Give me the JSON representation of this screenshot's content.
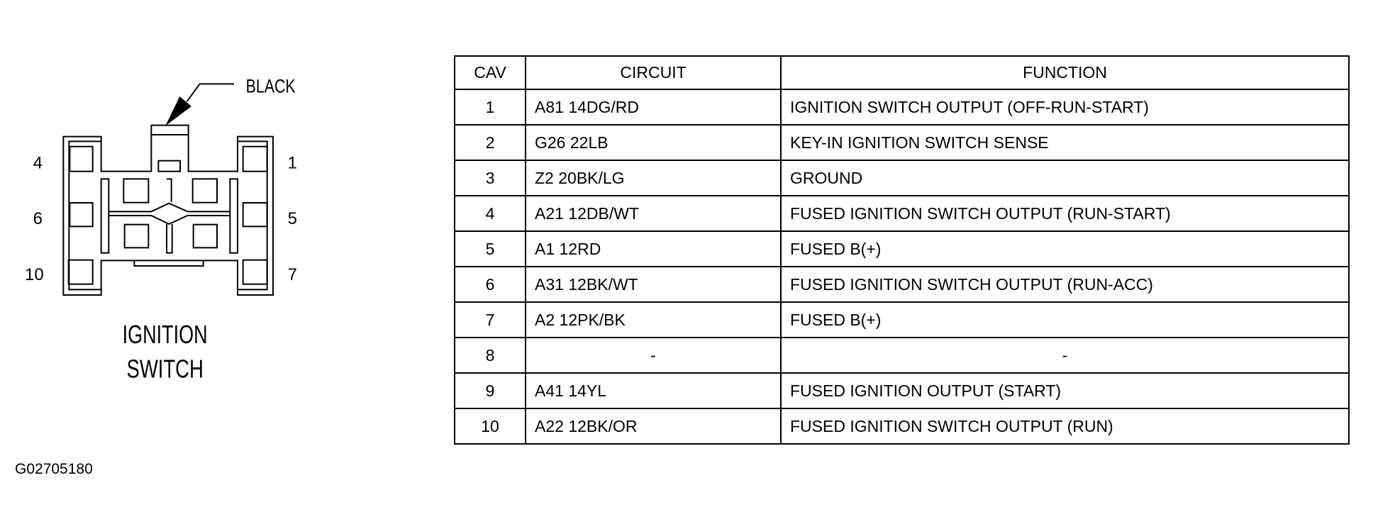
{
  "connector": {
    "color_label": "BLACK",
    "name_line1": "IGNITION",
    "name_line2": "SWITCH",
    "pin_labels_left": [
      "4",
      "6",
      "10"
    ],
    "pin_labels_right": [
      "1",
      "5",
      "7"
    ]
  },
  "table": {
    "headers": {
      "cav": "CAV",
      "circuit": "CIRCUIT",
      "function": "FUNCTION"
    },
    "rows": [
      {
        "cav": "1",
        "circuit": "A81 14DG/RD",
        "function": "IGNITION SWITCH OUTPUT (OFF-RUN-START)"
      },
      {
        "cav": "2",
        "circuit": "G26 22LB",
        "function": "KEY-IN IGNITION SWITCH SENSE"
      },
      {
        "cav": "3",
        "circuit": "Z2 20BK/LG",
        "function": "GROUND"
      },
      {
        "cav": "4",
        "circuit": "A21 12DB/WT",
        "function": "FUSED IGNITION SWITCH OUTPUT (RUN-START)"
      },
      {
        "cav": "5",
        "circuit": "A1 12RD",
        "function": "FUSED B(+)"
      },
      {
        "cav": "6",
        "circuit": "A31 12BK/WT",
        "function": "FUSED IGNITION SWITCH OUTPUT (RUN-ACC)"
      },
      {
        "cav": "7",
        "circuit": "A2 12PK/BK",
        "function": "FUSED B(+)"
      },
      {
        "cav": "8",
        "circuit": "-",
        "function": "-"
      },
      {
        "cav": "9",
        "circuit": "A41 14YL",
        "function": "FUSED IGNITION OUTPUT (START)"
      },
      {
        "cav": "10",
        "circuit": "A22 12BK/OR",
        "function": "FUSED IGNITION SWITCH OUTPUT (RUN)"
      }
    ]
  },
  "figure_id": "G02705180"
}
